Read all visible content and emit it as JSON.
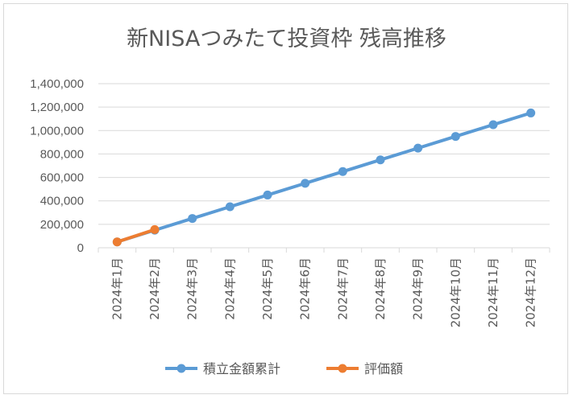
{
  "chart_data": {
    "type": "line",
    "title": "新NISAつみたて投資枠 残高推移",
    "categories": [
      "2024年1月",
      "2024年2月",
      "2024年3月",
      "2024年4月",
      "2024年5月",
      "2024年6月",
      "2024年7月",
      "2024年8月",
      "2024年9月",
      "2024年10月",
      "2024年11月",
      "2024年12月"
    ],
    "series": [
      {
        "name": "積立金額累計",
        "color": "#5b9bd5",
        "values": [
          50000,
          150000,
          250000,
          350000,
          450000,
          550000,
          650000,
          750000,
          850000,
          950000,
          1050000,
          1150000
        ]
      },
      {
        "name": "評価額",
        "color": "#ed7d31",
        "values": [
          50000,
          155000,
          null,
          null,
          null,
          null,
          null,
          null,
          null,
          null,
          null,
          null
        ]
      }
    ],
    "ylim": [
      0,
      1400000
    ],
    "yticks": [
      "0",
      "200,000",
      "400,000",
      "600,000",
      "800,000",
      "1,000,000",
      "1,200,000",
      "1,400,000"
    ],
    "grid": true,
    "legend": "bottom",
    "xlabel": "",
    "ylabel": ""
  }
}
